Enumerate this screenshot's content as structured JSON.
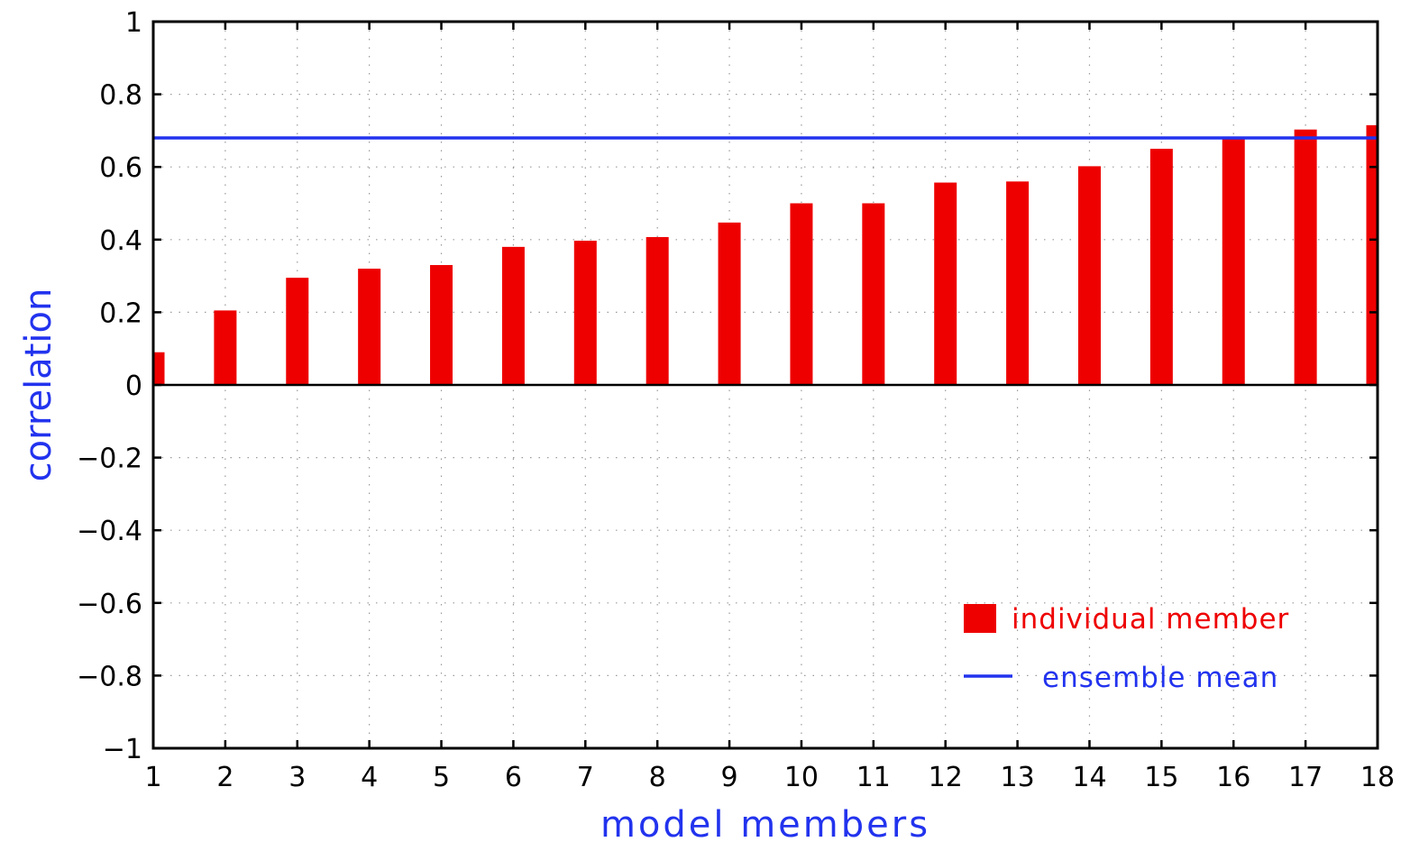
{
  "chart_data": {
    "type": "bar",
    "title": "",
    "xlabel": "model members",
    "ylabel": "correlation",
    "categories": [
      "1",
      "2",
      "3",
      "4",
      "5",
      "6",
      "7",
      "8",
      "9",
      "10",
      "11",
      "12",
      "13",
      "14",
      "15",
      "16",
      "17",
      "18"
    ],
    "series": [
      {
        "name": "individual member",
        "color": "#ee0000",
        "values": [
          0.09,
          0.205,
          0.295,
          0.32,
          0.33,
          0.38,
          0.397,
          0.407,
          0.447,
          0.5,
          0.5,
          0.557,
          0.56,
          0.602,
          0.65,
          0.68,
          0.703,
          0.715
        ]
      }
    ],
    "reference_lines": [
      {
        "name": "ensemble mean",
        "color": "#2233ee",
        "value": 0.68
      }
    ],
    "ylim": [
      -1,
      1
    ],
    "xlim": [
      1,
      18
    ],
    "yticks": [
      "−1",
      "−0.8",
      "−0.6",
      "−0.4",
      "−0.2",
      "0",
      "0.2",
      "0.4",
      "0.6",
      "0.8",
      "1"
    ],
    "xticks": [
      "1",
      "2",
      "3",
      "4",
      "5",
      "6",
      "7",
      "8",
      "9",
      "10",
      "11",
      "12",
      "13",
      "14",
      "15",
      "16",
      "17",
      "18"
    ],
    "grid": true,
    "legend_position": "bottom-right",
    "axis_title_color": "#2233ee",
    "zero_line_color": "#000000"
  }
}
